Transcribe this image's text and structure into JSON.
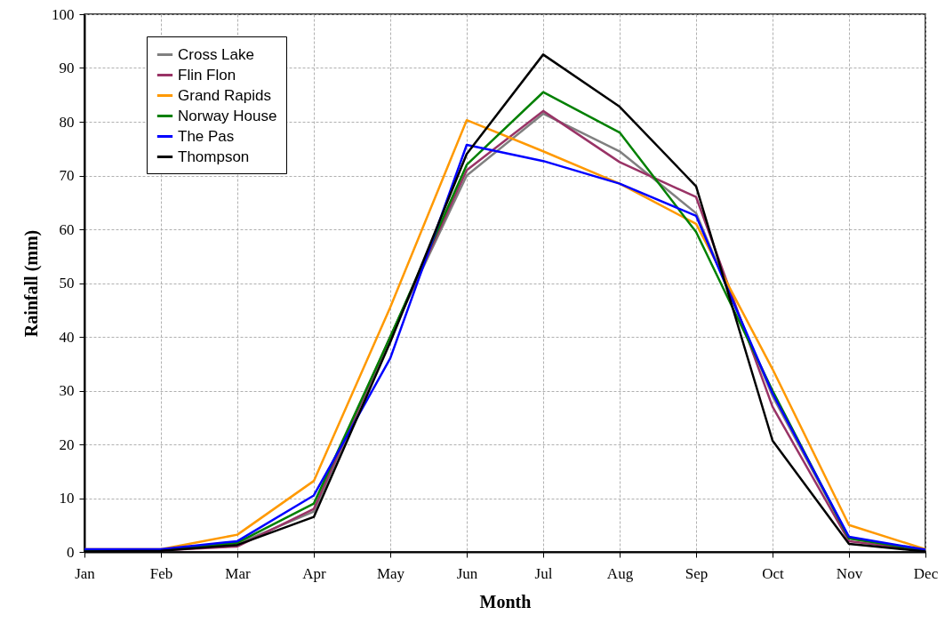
{
  "chart_data": {
    "type": "line",
    "xlabel": "Month",
    "ylabel": "Rainfall (mm)",
    "categories": [
      "Jan",
      "Feb",
      "Mar",
      "Apr",
      "May",
      "Jun",
      "Jul",
      "Aug",
      "Sep",
      "Oct",
      "Nov",
      "Dec"
    ],
    "series": [
      {
        "name": "Cross Lake",
        "color": "#808080",
        "values": [
          0.3,
          0.4,
          1.5,
          7.5,
          40,
          70,
          81.5,
          74.5,
          63,
          29,
          2.5,
          0.3
        ]
      },
      {
        "name": "Flin Flon",
        "color": "#993366",
        "values": [
          0.2,
          0.3,
          1.0,
          8,
          40,
          71,
          82,
          72.5,
          66,
          27,
          2,
          0.3
        ]
      },
      {
        "name": "Grand Rapids",
        "color": "#ff9900",
        "values": [
          0.5,
          0.5,
          3.2,
          13.2,
          45.5,
          80.3,
          74.5,
          68.5,
          61,
          34,
          5,
          0.5
        ]
      },
      {
        "name": "Norway House",
        "color": "#008000",
        "values": [
          0.3,
          0.4,
          1.7,
          9,
          40,
          72,
          85.5,
          78,
          59.5,
          30,
          2.5,
          0.3
        ]
      },
      {
        "name": "The Pas",
        "color": "#0000ff",
        "values": [
          0.5,
          0.5,
          2,
          10.5,
          36,
          75.7,
          72.7,
          68.5,
          62.5,
          29.5,
          2.8,
          0.4
        ]
      },
      {
        "name": "Thompson",
        "color": "#000000",
        "values": [
          0.1,
          0.2,
          1.3,
          6.5,
          39,
          74,
          92.5,
          82.8,
          68,
          20.7,
          1.5,
          0.1
        ]
      }
    ],
    "ylim": [
      0,
      100
    ],
    "yticks": [
      0,
      10,
      20,
      30,
      40,
      50,
      60,
      70,
      80,
      90,
      100
    ],
    "grid": true,
    "legend": "top left",
    "line_style": "solid",
    "marker": "none"
  }
}
